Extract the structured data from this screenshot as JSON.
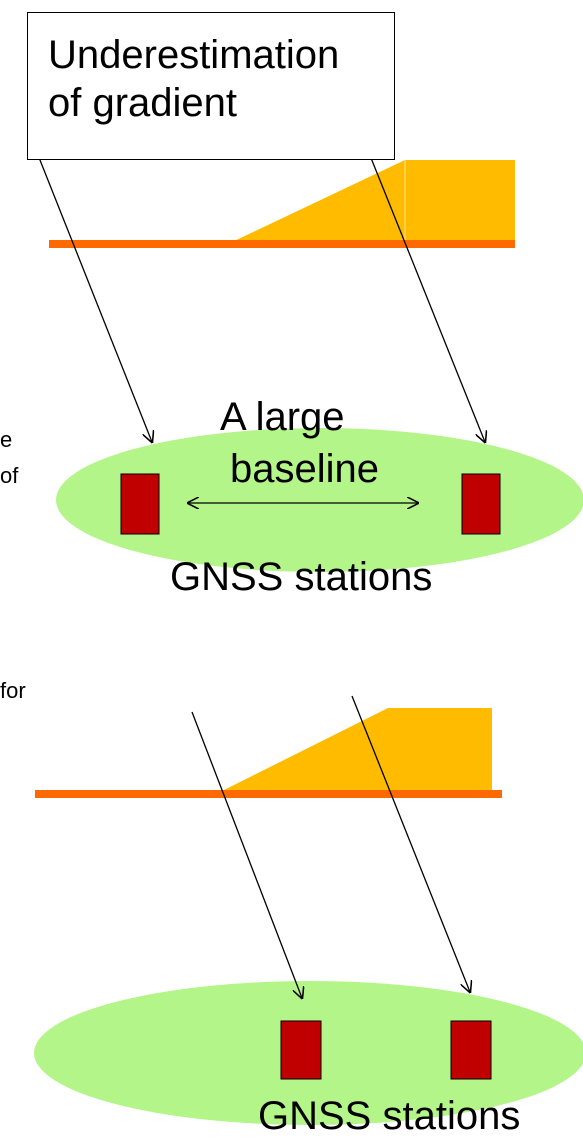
{
  "callout": {
    "line1": "Underestimation",
    "line2": "of gradient"
  },
  "baseline": {
    "line1": "A large",
    "line2": "baseline"
  },
  "stations_top_label": "GNSS stations",
  "stations_bottom_label": "GNSS stations",
  "cut_text": {
    "t1": "e",
    "t2": "of",
    "t3": "for"
  },
  "colors": {
    "ground": "#ff6a00",
    "slope": "#ffbb00",
    "ellipse": "#b4f58a",
    "station": "#c00000",
    "line": "#000000"
  }
}
